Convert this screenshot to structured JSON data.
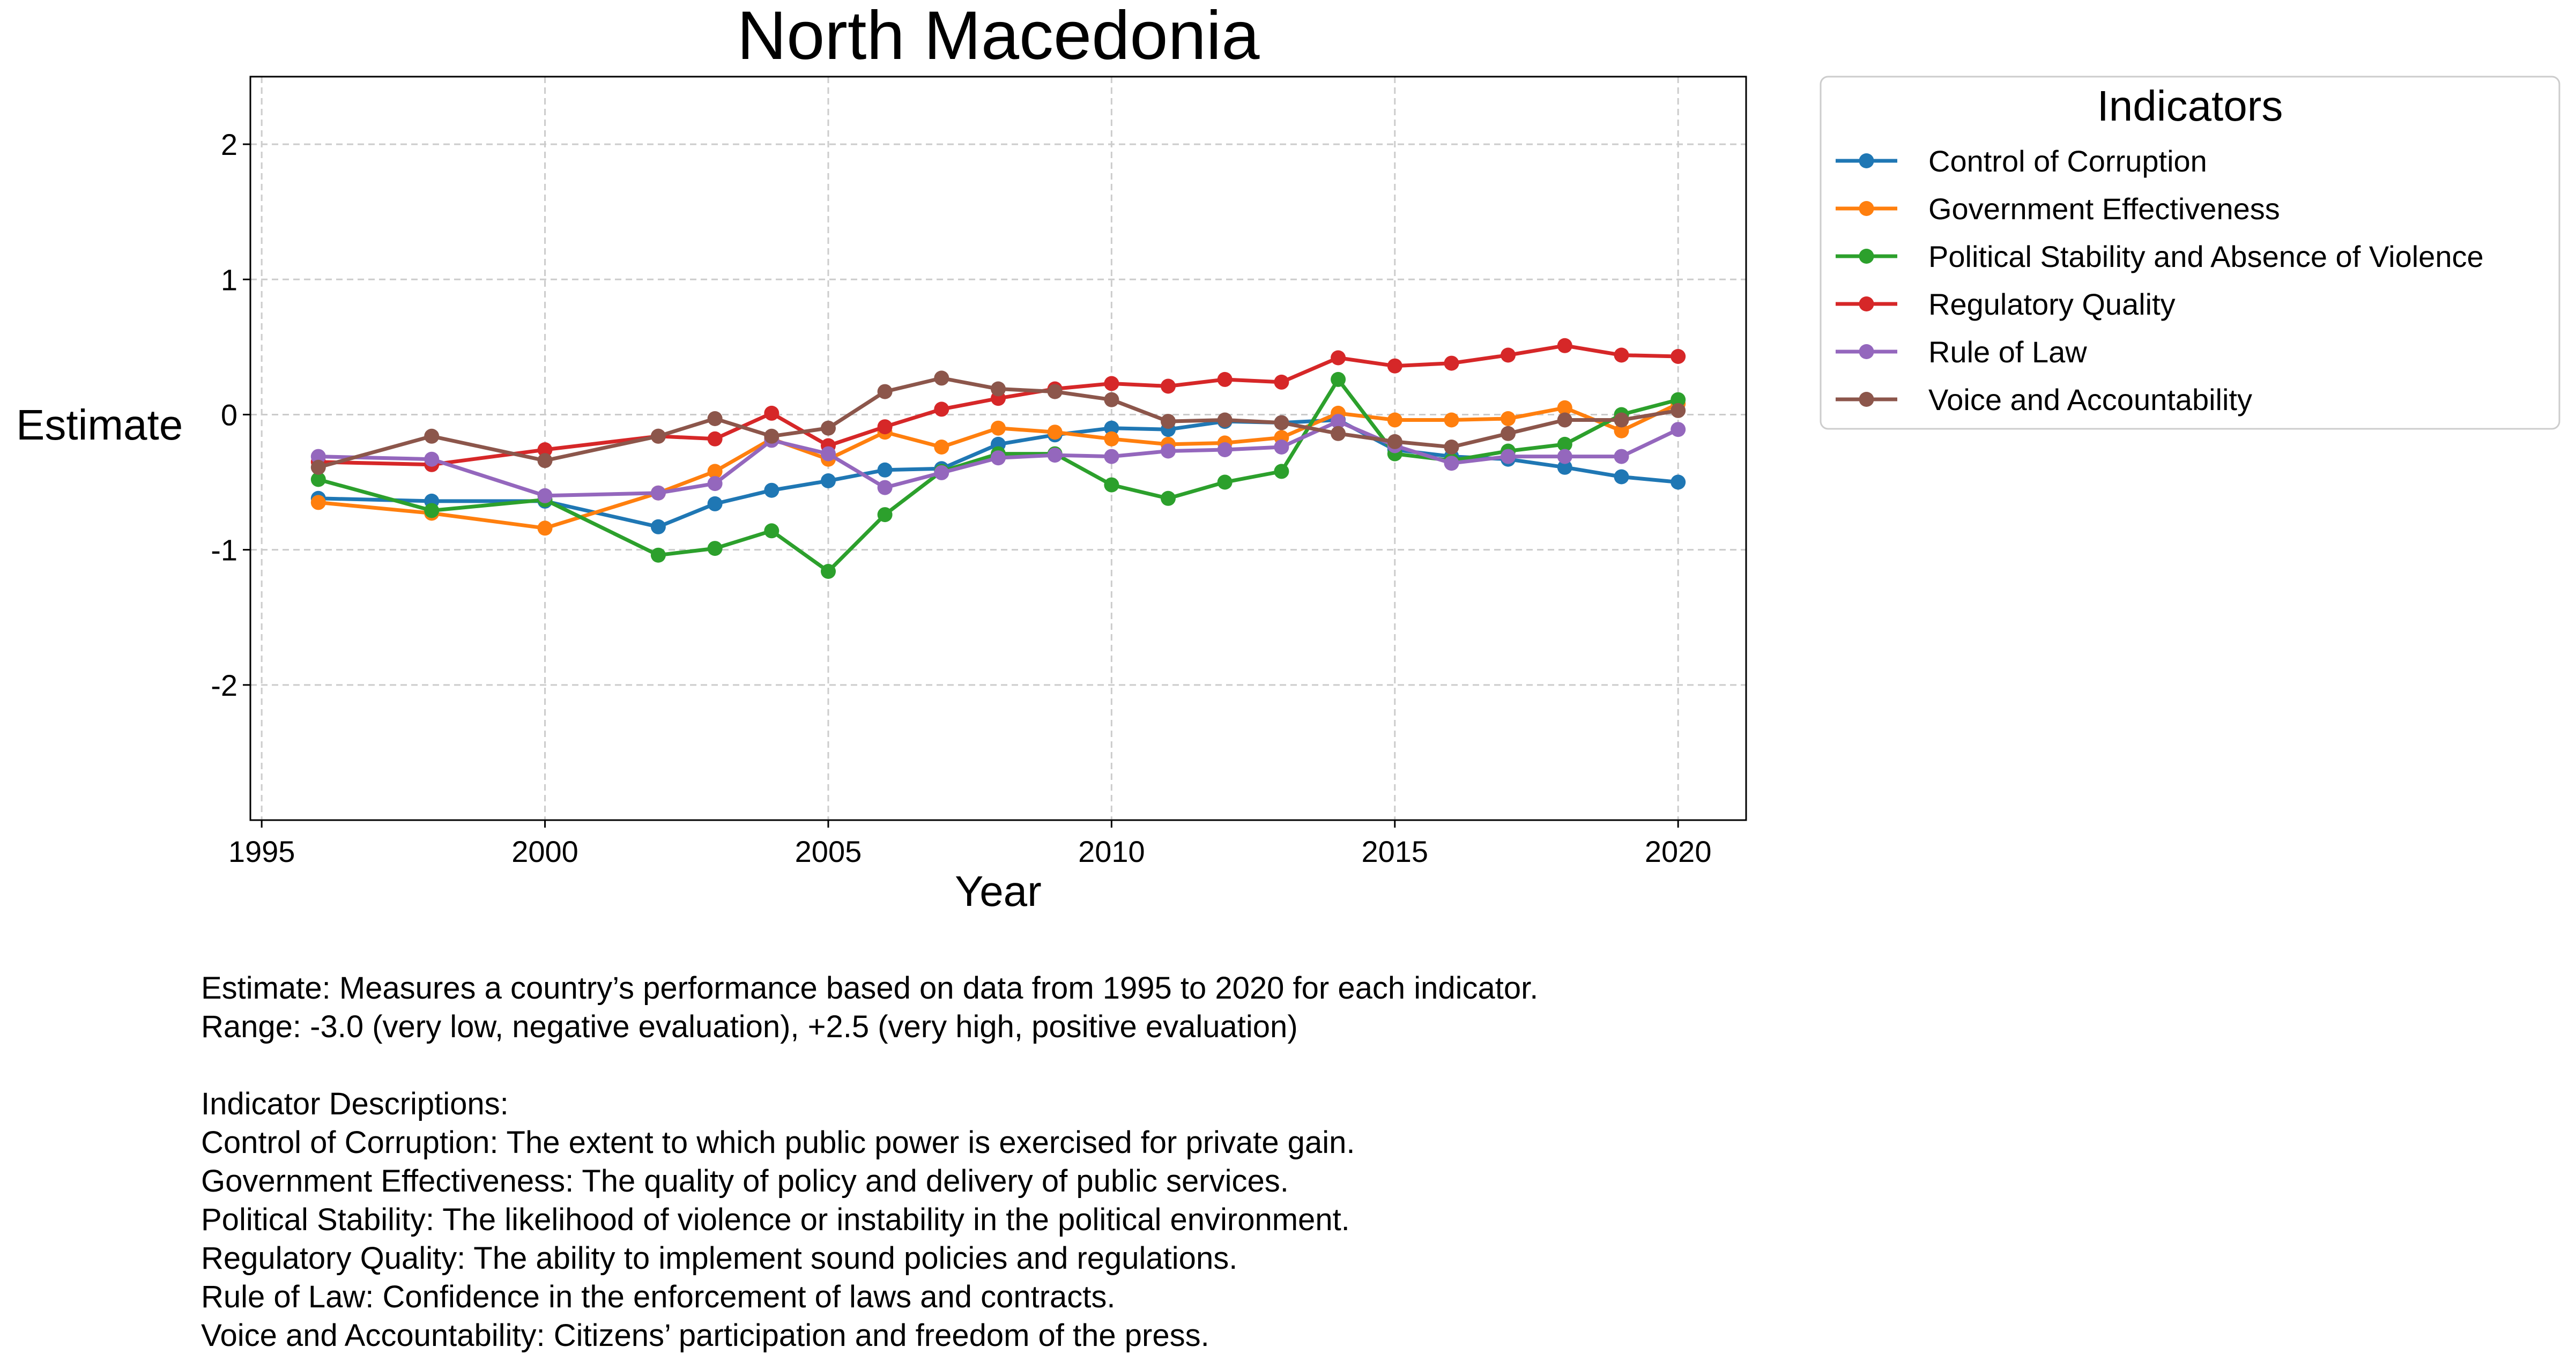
{
  "chart_data": {
    "type": "line",
    "title": "North Macedonia",
    "xlabel": "Year",
    "ylabel": "Estimate",
    "xlim": [
      1994.8,
      2021.2
    ],
    "ylim": [
      -3.0,
      2.5
    ],
    "xticks": [
      1995,
      2000,
      2005,
      2010,
      2015,
      2020
    ],
    "yticks": [
      -2,
      -1,
      0,
      1,
      2
    ],
    "grid": true,
    "legend": {
      "title": "Indicators",
      "placement": "outside-top-right"
    },
    "x": [
      1996,
      1998,
      2000,
      2002,
      2003,
      2004,
      2005,
      2006,
      2007,
      2008,
      2009,
      2010,
      2011,
      2012,
      2013,
      2014,
      2015,
      2016,
      2017,
      2018,
      2019,
      2020
    ],
    "series": [
      {
        "name": "Control of Corruption",
        "color": "#1f77b4",
        "values": [
          -0.62,
          -0.64,
          -0.64,
          -0.83,
          -0.66,
          -0.56,
          -0.49,
          -0.41,
          -0.4,
          -0.22,
          -0.15,
          -0.1,
          -0.11,
          -0.05,
          -0.06,
          -0.04,
          -0.26,
          -0.31,
          -0.33,
          -0.39,
          -0.46,
          -0.5
        ]
      },
      {
        "name": "Government Effectiveness",
        "color": "#ff7f0e",
        "values": [
          -0.65,
          -0.73,
          -0.84,
          -0.58,
          -0.42,
          -0.18,
          -0.33,
          -0.13,
          -0.24,
          -0.1,
          -0.13,
          -0.18,
          -0.22,
          -0.21,
          -0.17,
          0.01,
          -0.04,
          -0.04,
          -0.03,
          0.05,
          -0.12,
          0.08
        ]
      },
      {
        "name": "Political Stability and Absence of Violence",
        "color": "#2ca02c",
        "values": [
          -0.48,
          -0.71,
          -0.63,
          -1.04,
          -0.99,
          -0.86,
          -1.16,
          -0.74,
          -0.42,
          -0.29,
          -0.29,
          -0.52,
          -0.62,
          -0.5,
          -0.42,
          0.26,
          -0.29,
          -0.34,
          -0.27,
          -0.22,
          0.0,
          0.11
        ]
      },
      {
        "name": "Regulatory Quality",
        "color": "#d62728",
        "values": [
          -0.35,
          -0.37,
          -0.26,
          -0.16,
          -0.18,
          0.01,
          -0.23,
          -0.09,
          0.04,
          0.12,
          0.19,
          0.23,
          0.21,
          0.26,
          0.24,
          0.42,
          0.36,
          0.38,
          0.44,
          0.51,
          0.44,
          0.43
        ]
      },
      {
        "name": "Rule of Law",
        "color": "#9467bd",
        "values": [
          -0.31,
          -0.33,
          -0.6,
          -0.58,
          -0.51,
          -0.19,
          -0.29,
          -0.54,
          -0.43,
          -0.32,
          -0.3,
          -0.31,
          -0.27,
          -0.26,
          -0.24,
          -0.05,
          -0.23,
          -0.36,
          -0.31,
          -0.31,
          -0.31,
          -0.11
        ]
      },
      {
        "name": "Voice and Accountability",
        "color": "#8c564b",
        "values": [
          -0.39,
          -0.16,
          -0.34,
          -0.16,
          -0.03,
          -0.16,
          -0.1,
          0.17,
          0.27,
          0.19,
          0.17,
          0.11,
          -0.05,
          -0.04,
          -0.06,
          -0.14,
          -0.2,
          -0.24,
          -0.14,
          -0.04,
          -0.04,
          0.03
        ]
      }
    ]
  },
  "notes": {
    "line1": "Estimate: Measures a country’s performance based on data from 1995 to 2020 for each indicator.",
    "line2": "Range: -3.0 (very low, negative evaluation), +2.5 (very high, positive evaluation)",
    "line3": "Indicator Descriptions:",
    "line4": "Control of Corruption: The extent to which public power is exercised for private gain.",
    "line5": "Government Effectiveness: The quality of policy and delivery of public services.",
    "line6": "Political Stability: The likelihood of violence or instability in the political environment.",
    "line7": "Regulatory Quality: The ability to implement sound policies and regulations.",
    "line8": "Rule of Law: Confidence in the enforcement of laws and contracts.",
    "line9": "Voice and Accountability: Citizens’ participation and freedom of the press."
  }
}
